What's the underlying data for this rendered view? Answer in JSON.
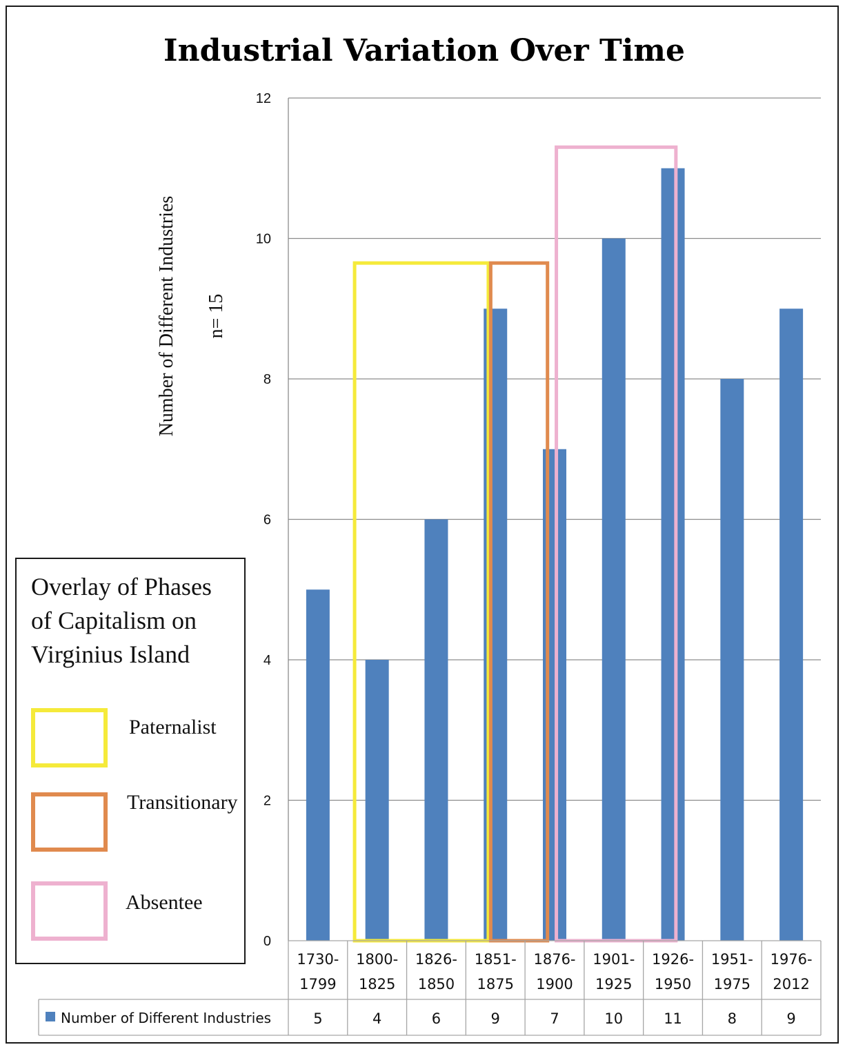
{
  "chart_data": {
    "type": "bar",
    "title": "Industrial Variation Over Time",
    "ylabel": "Number of Different Industries",
    "annotation": "n= 15",
    "ylim": [
      0,
      12
    ],
    "yticks": [
      "0",
      "2",
      "4",
      "6",
      "8",
      "10",
      "12"
    ],
    "grid": true,
    "categories": [
      {
        "line1": "1730-",
        "line2": "1799"
      },
      {
        "line1": "1800-",
        "line2": "1825"
      },
      {
        "line1": "1826-",
        "line2": "1850"
      },
      {
        "line1": "1851-",
        "line2": "1875"
      },
      {
        "line1": "1876-",
        "line2": "1900"
      },
      {
        "line1": "1901-",
        "line2": "1925"
      },
      {
        "line1": "1926-",
        "line2": "1950"
      },
      {
        "line1": "1951-",
        "line2": "1975"
      },
      {
        "line1": "1976-",
        "line2": "2012"
      }
    ],
    "series": [
      {
        "name": "Number of Different Industries",
        "values": [
          5,
          4,
          6,
          9,
          7,
          10,
          11,
          8,
          9
        ],
        "color": "#4f81bd"
      }
    ],
    "data_table": {
      "series_name": "Number of Different Industries",
      "values": [
        "5",
        "4",
        "6",
        "9",
        "7",
        "10",
        "11",
        "8",
        "9"
      ]
    },
    "overlay_legend": {
      "title_lines": [
        "Overlay of Phases",
        "of Capitalism on",
        "Virginius Island"
      ],
      "items": [
        {
          "label": "Paternalist",
          "color": "#f5ea3a"
        },
        {
          "label": "Transitionary",
          "color": "#e08a4e"
        },
        {
          "label": "Absentee",
          "color": "#eeb1cf"
        }
      ]
    },
    "phases": [
      {
        "name": "Paternalist",
        "color": "#f5ea3a",
        "start_category": "1800-1825",
        "end_category": "1851-1875",
        "height": 9.65
      },
      {
        "name": "Transitionary",
        "color": "#e08a4e",
        "start_category": "1851-1875",
        "end_category": "1876-1900",
        "height": 9.65
      },
      {
        "name": "Absentee",
        "color": "#eeb1cf",
        "start_category": "1876-1900",
        "end_category": "1926-1950",
        "height": 11.3
      }
    ]
  }
}
